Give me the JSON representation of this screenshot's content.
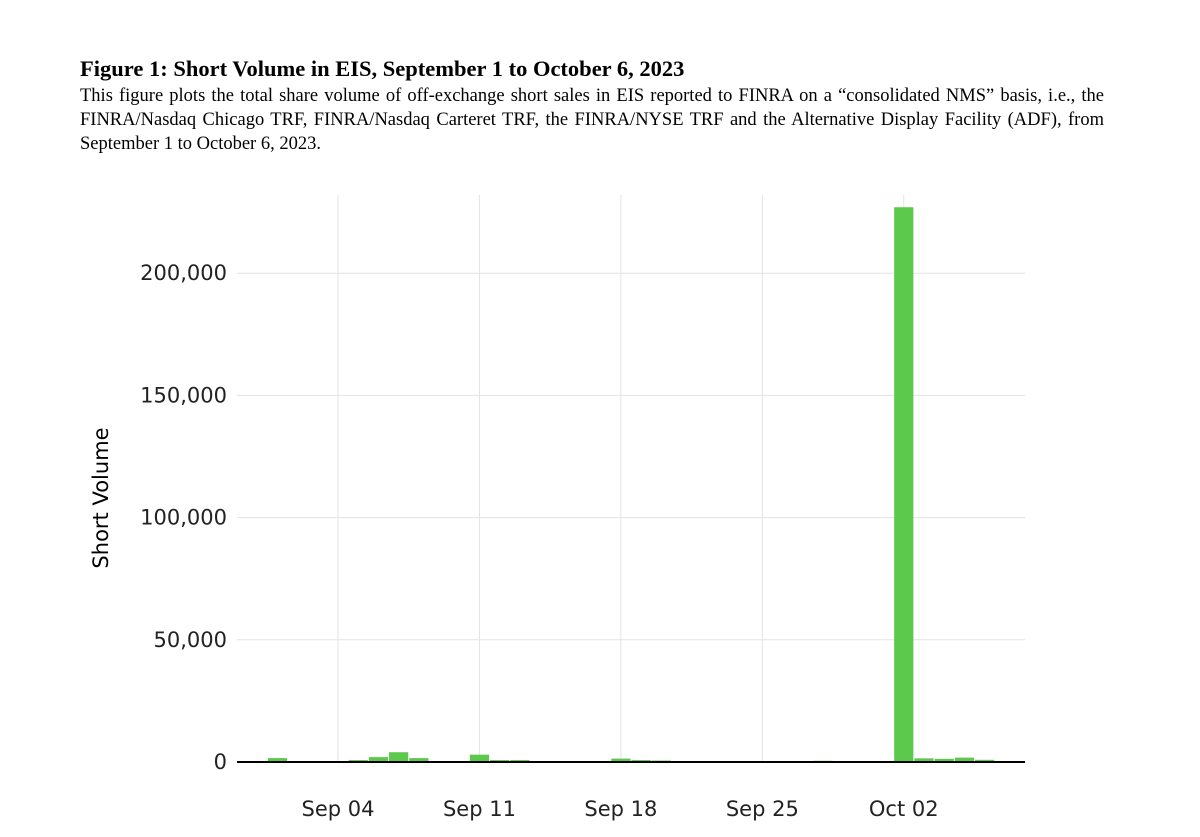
{
  "figure": {
    "title": "Figure 1: Short Volume in EIS, September 1 to October 6, 2023",
    "description": "This figure plots the total share volume of off-exchange short sales in EIS reported to FINRA on a “consolidated NMS” basis, i.e., the FINRA/Nasdaq Chicago TRF, FINRA/Nasdaq Carteret TRF, the FINRA/NYSE TRF and the Alternative Display Facility (ADF), from September 1 to October 6, 2023."
  },
  "chart_data": {
    "type": "bar",
    "ylabel": "Short Volume",
    "xlabel": "",
    "ylim": [
      0,
      232000
    ],
    "xlim": [
      "2023-08-30",
      "2023-10-08"
    ],
    "yticks": [
      0,
      50000,
      100000,
      150000,
      200000
    ],
    "ytick_labels": [
      "0",
      "50,000",
      "100,000",
      "150,000",
      "200,000"
    ],
    "xticks": [
      "2023-09-04",
      "2023-09-11",
      "2023-09-18",
      "2023-09-25",
      "2023-10-02"
    ],
    "xtick_labels": [
      "Sep 04",
      "Sep 11",
      "Sep 18",
      "Sep 25",
      "Oct 02"
    ],
    "grid": true,
    "bar_color": "#5cc94d",
    "series": [
      {
        "x": [
          "2023-09-01",
          "2023-09-05",
          "2023-09-06",
          "2023-09-07",
          "2023-09-08",
          "2023-09-11",
          "2023-09-12",
          "2023-09-13",
          "2023-09-14",
          "2023-09-18",
          "2023-09-19",
          "2023-09-20",
          "2023-09-21",
          "2023-09-25",
          "2023-09-26",
          "2023-09-28",
          "2023-10-02",
          "2023-10-03",
          "2023-10-04",
          "2023-10-05",
          "2023-10-06"
        ],
        "values": [
          1600,
          800,
          2000,
          4000,
          1600,
          3000,
          800,
          800,
          400,
          1400,
          800,
          600,
          400,
          400,
          400,
          500,
          227000,
          1500,
          1300,
          1800,
          900
        ]
      }
    ]
  }
}
